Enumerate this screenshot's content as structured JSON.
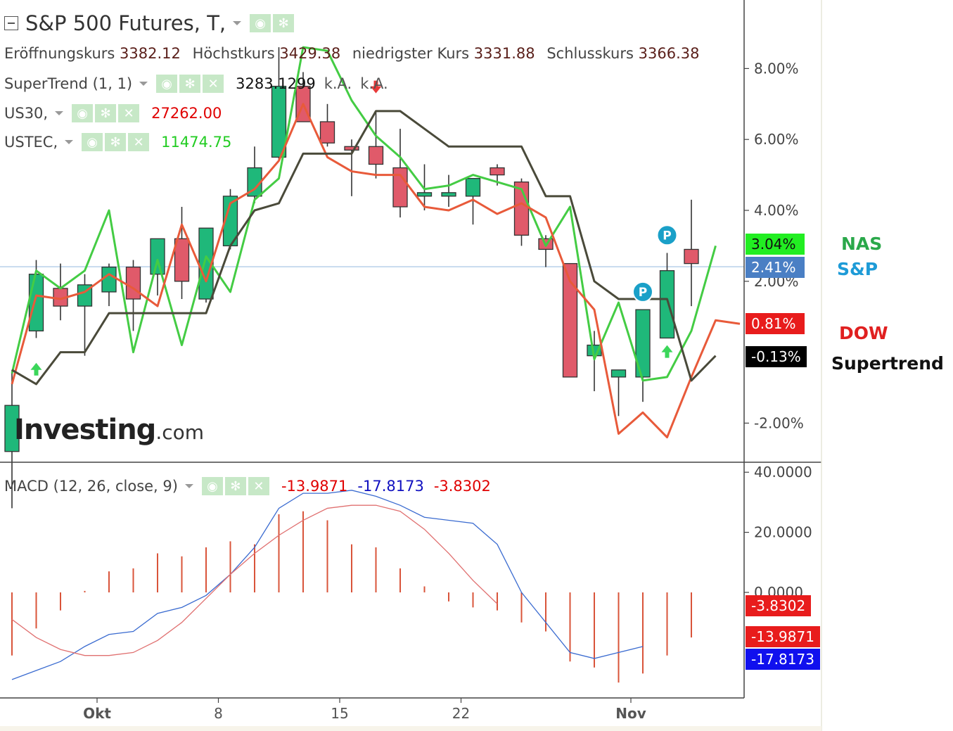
{
  "header": {
    "title": "S&P 500 Futures, T,",
    "ohlc": [
      {
        "label": "Eröffnungskurs",
        "value": "3382.12"
      },
      {
        "label": "Höchstkurs",
        "value": "3429.38"
      },
      {
        "label": "niedrigster Kurs",
        "value": "3331.88"
      },
      {
        "label": "Schlusskurs",
        "value": "3366.38"
      }
    ],
    "indicators": [
      {
        "name": "SuperTrend (1, 1)",
        "values": [
          "3283.1299",
          "k.A.",
          "k.A."
        ],
        "color": "#111111"
      },
      {
        "name": "US30,",
        "values": [
          "27262.00"
        ],
        "color": "#e00000"
      },
      {
        "name": "USTEC,",
        "values": [
          "11474.75"
        ],
        "color": "#22cc22"
      }
    ],
    "macd": {
      "name": "MACD (12, 26, close, 9)",
      "values": [
        "-13.9871",
        "-17.8173",
        "-3.8302"
      ],
      "value_colors": [
        "#e00000",
        "#1010c0",
        "#e00000"
      ]
    }
  },
  "logo": {
    "brand": "Investing",
    "suffix": ".com"
  },
  "legend": [
    {
      "label": "NAS",
      "color": "#2aa84a"
    },
    {
      "label": "S&P",
      "color": "#1e9bd7"
    },
    {
      "label": "DOW",
      "color": "#e02020"
    },
    {
      "label": "Supertrend",
      "color": "#111111"
    }
  ],
  "badges": [
    {
      "text": "3.04%",
      "bg": "#22ee22",
      "fg": "#111111",
      "value": 3.04
    },
    {
      "text": "2.41%",
      "bg": "#4a7fc4",
      "fg": "#ffffff",
      "value": 2.41
    },
    {
      "text": "0.81%",
      "bg": "#e81c1c",
      "fg": "#ffffff",
      "value": 0.81
    },
    {
      "text": "-0.13%",
      "bg": "#000000",
      "fg": "#ffffff",
      "value": -0.13
    }
  ],
  "macd_badges": [
    {
      "text": "-3.8302",
      "bg": "#e81c1c",
      "fg": "#ffffff",
      "value": -3.8302
    },
    {
      "text": "-13.9871",
      "bg": "#e81c1c",
      "fg": "#ffffff",
      "value": -13.9871
    },
    {
      "text": "-17.8173",
      "bg": "#1010ee",
      "fg": "#ffffff",
      "value": -17.8173
    }
  ],
  "chart_data": [
    {
      "type": "line",
      "title": "S&P 500 Futures",
      "y_unit": "%",
      "yticks": [
        "8.00%",
        "6.00%",
        "4.00%",
        "2.00%",
        "-2.00%"
      ],
      "ytick_values": [
        8,
        6,
        4,
        2,
        -2
      ],
      "ylim": [
        -2.6,
        8.7
      ],
      "x_ticks": [
        {
          "label": "Okt",
          "index": 4
        },
        {
          "label": "8",
          "index": 9
        },
        {
          "label": "15",
          "index": 14
        },
        {
          "label": "22",
          "index": 19
        },
        {
          "label": "Nov",
          "index": 26
        }
      ],
      "candles_pct": [
        {
          "o": -2.8,
          "h": -0.5,
          "l": -4.4,
          "c": -1.5
        },
        {
          "o": 0.6,
          "h": 2.6,
          "l": 0.4,
          "c": 2.2
        },
        {
          "o": 1.8,
          "h": 2.5,
          "l": 0.9,
          "c": 1.3
        },
        {
          "o": 1.3,
          "h": 2.2,
          "l": -0.1,
          "c": 1.9
        },
        {
          "o": 1.7,
          "h": 2.5,
          "l": 1.3,
          "c": 2.4
        },
        {
          "o": 2.4,
          "h": 2.6,
          "l": 0.6,
          "c": 1.5
        },
        {
          "o": 2.2,
          "h": 3.2,
          "l": 1.6,
          "c": 3.2
        },
        {
          "o": 3.2,
          "h": 4.1,
          "l": 1.5,
          "c": 2.0
        },
        {
          "o": 1.5,
          "h": 3.3,
          "l": 1.4,
          "c": 3.5
        },
        {
          "o": 3.0,
          "h": 4.6,
          "l": 2.9,
          "c": 4.4
        },
        {
          "o": 4.4,
          "h": 5.8,
          "l": 4.2,
          "c": 5.2
        },
        {
          "o": 5.5,
          "h": 8.6,
          "l": 5.4,
          "c": 7.5
        },
        {
          "o": 7.5,
          "h": 7.9,
          "l": 6.6,
          "c": 6.5
        },
        {
          "o": 6.5,
          "h": 7.0,
          "l": 5.8,
          "c": 5.9
        },
        {
          "o": 5.8,
          "h": 6.0,
          "l": 4.4,
          "c": 5.7
        },
        {
          "o": 5.8,
          "h": 6.8,
          "l": 4.9,
          "c": 5.3
        },
        {
          "o": 5.2,
          "h": 6.3,
          "l": 3.8,
          "c": 4.1
        },
        {
          "o": 4.5,
          "h": 5.3,
          "l": 4.0,
          "c": 4.5
        },
        {
          "o": 4.5,
          "h": 5.0,
          "l": 4.1,
          "c": 4.5
        },
        {
          "o": 4.4,
          "h": 4.9,
          "l": 3.6,
          "c": 4.9
        },
        {
          "o": 5.2,
          "h": 5.3,
          "l": 4.7,
          "c": 5.0
        },
        {
          "o": 4.8,
          "h": 4.9,
          "l": 3.0,
          "c": 3.3
        },
        {
          "o": 3.2,
          "h": 3.3,
          "l": 2.4,
          "c": 2.9
        },
        {
          "o": 2.5,
          "h": 2.5,
          "l": -0.6,
          "c": -0.7
        },
        {
          "o": -0.1,
          "h": 0.6,
          "l": -1.1,
          "c": 0.2
        },
        {
          "o": -0.7,
          "h": -0.5,
          "l": -1.8,
          "c": -0.5
        },
        {
          "o": -0.7,
          "h": 0.9,
          "l": -1.4,
          "c": 1.2
        },
        {
          "o": 0.4,
          "h": 2.8,
          "l": 0.4,
          "c": 2.3
        },
        {
          "o": 2.9,
          "h": 4.3,
          "l": 1.3,
          "c": 2.5
        }
      ],
      "series": [
        {
          "name": "NAS",
          "color": "#44cc44",
          "values": [
            -0.6,
            2.3,
            1.8,
            2.3,
            4.0,
            0.0,
            2.6,
            0.2,
            2.7,
            1.7,
            4.3,
            4.9,
            8.6,
            8.5,
            7.1,
            6.1,
            5.5,
            4.6,
            4.7,
            5.0,
            4.8,
            4.6,
            3.0,
            4.1,
            -0.2,
            1.4,
            -0.8,
            -0.7,
            0.6,
            3.0
          ]
        },
        {
          "name": "DOW",
          "color": "#e85a3a",
          "values": [
            -0.9,
            1.6,
            1.5,
            1.7,
            2.2,
            1.8,
            1.3,
            3.6,
            2.0,
            4.2,
            4.6,
            5.4,
            7.0,
            5.5,
            5.1,
            5.0,
            5.0,
            4.1,
            4.0,
            4.3,
            3.9,
            4.2,
            3.8,
            2.0,
            1.2,
            -2.3,
            -1.7,
            -2.4,
            -0.7,
            0.9,
            0.8
          ]
        },
        {
          "name": "Supertrend",
          "color": "#4a4a3a",
          "values": [
            -0.5,
            -0.9,
            0.0,
            0.0,
            1.1,
            1.1,
            1.1,
            1.1,
            1.1,
            3.0,
            4.0,
            4.2,
            5.6,
            5.6,
            5.6,
            6.8,
            6.8,
            6.3,
            5.8,
            5.8,
            5.8,
            5.8,
            4.4,
            4.4,
            2.0,
            1.5,
            1.5,
            1.5,
            -0.8,
            -0.1
          ]
        }
      ],
      "markers": [
        {
          "type": "up-arrow",
          "index": 1,
          "value": -0.5
        },
        {
          "type": "down-arrow",
          "index": 15,
          "value": 7.5
        },
        {
          "type": "up-arrow",
          "index": 27,
          "value": -0.0
        },
        {
          "type": "pivot",
          "label": "P",
          "index": 26,
          "value": 1.7
        },
        {
          "type": "pivot",
          "label": "P",
          "index": 27,
          "value": 3.3
        }
      ],
      "reference_line": 2.41
    },
    {
      "type": "bar",
      "title": "MACD (12, 26, close, 9)",
      "yticks": [
        "40.0000",
        "20.0000",
        "0.0000"
      ],
      "ytick_values": [
        40,
        20,
        0
      ],
      "ylim": [
        -30,
        41
      ],
      "histogram": [
        -21,
        -12,
        -6,
        0.5,
        7,
        8,
        13,
        12,
        15,
        17,
        16,
        26,
        27,
        24,
        16,
        15,
        8,
        2,
        -3,
        -5,
        -6,
        -10,
        -13,
        -23,
        -25,
        -30,
        -27,
        -21,
        -15
      ],
      "series": [
        {
          "name": "MACD",
          "color": "#3a6bd0",
          "values": [
            -29,
            -26,
            -23,
            -18,
            -14,
            -13,
            -7,
            -5,
            -1,
            6,
            15,
            28,
            33,
            33,
            34,
            32,
            29,
            25,
            24,
            23,
            16,
            0,
            -10,
            -20,
            -22,
            -20,
            -18
          ]
        },
        {
          "name": "Signal",
          "color": "#e07070",
          "values": [
            -9,
            -15,
            -19,
            -21,
            -21,
            -20,
            -16,
            -10,
            -2,
            6,
            13,
            19,
            24,
            28,
            29,
            29,
            27,
            21,
            13,
            4,
            -3.8
          ]
        }
      ]
    }
  ]
}
